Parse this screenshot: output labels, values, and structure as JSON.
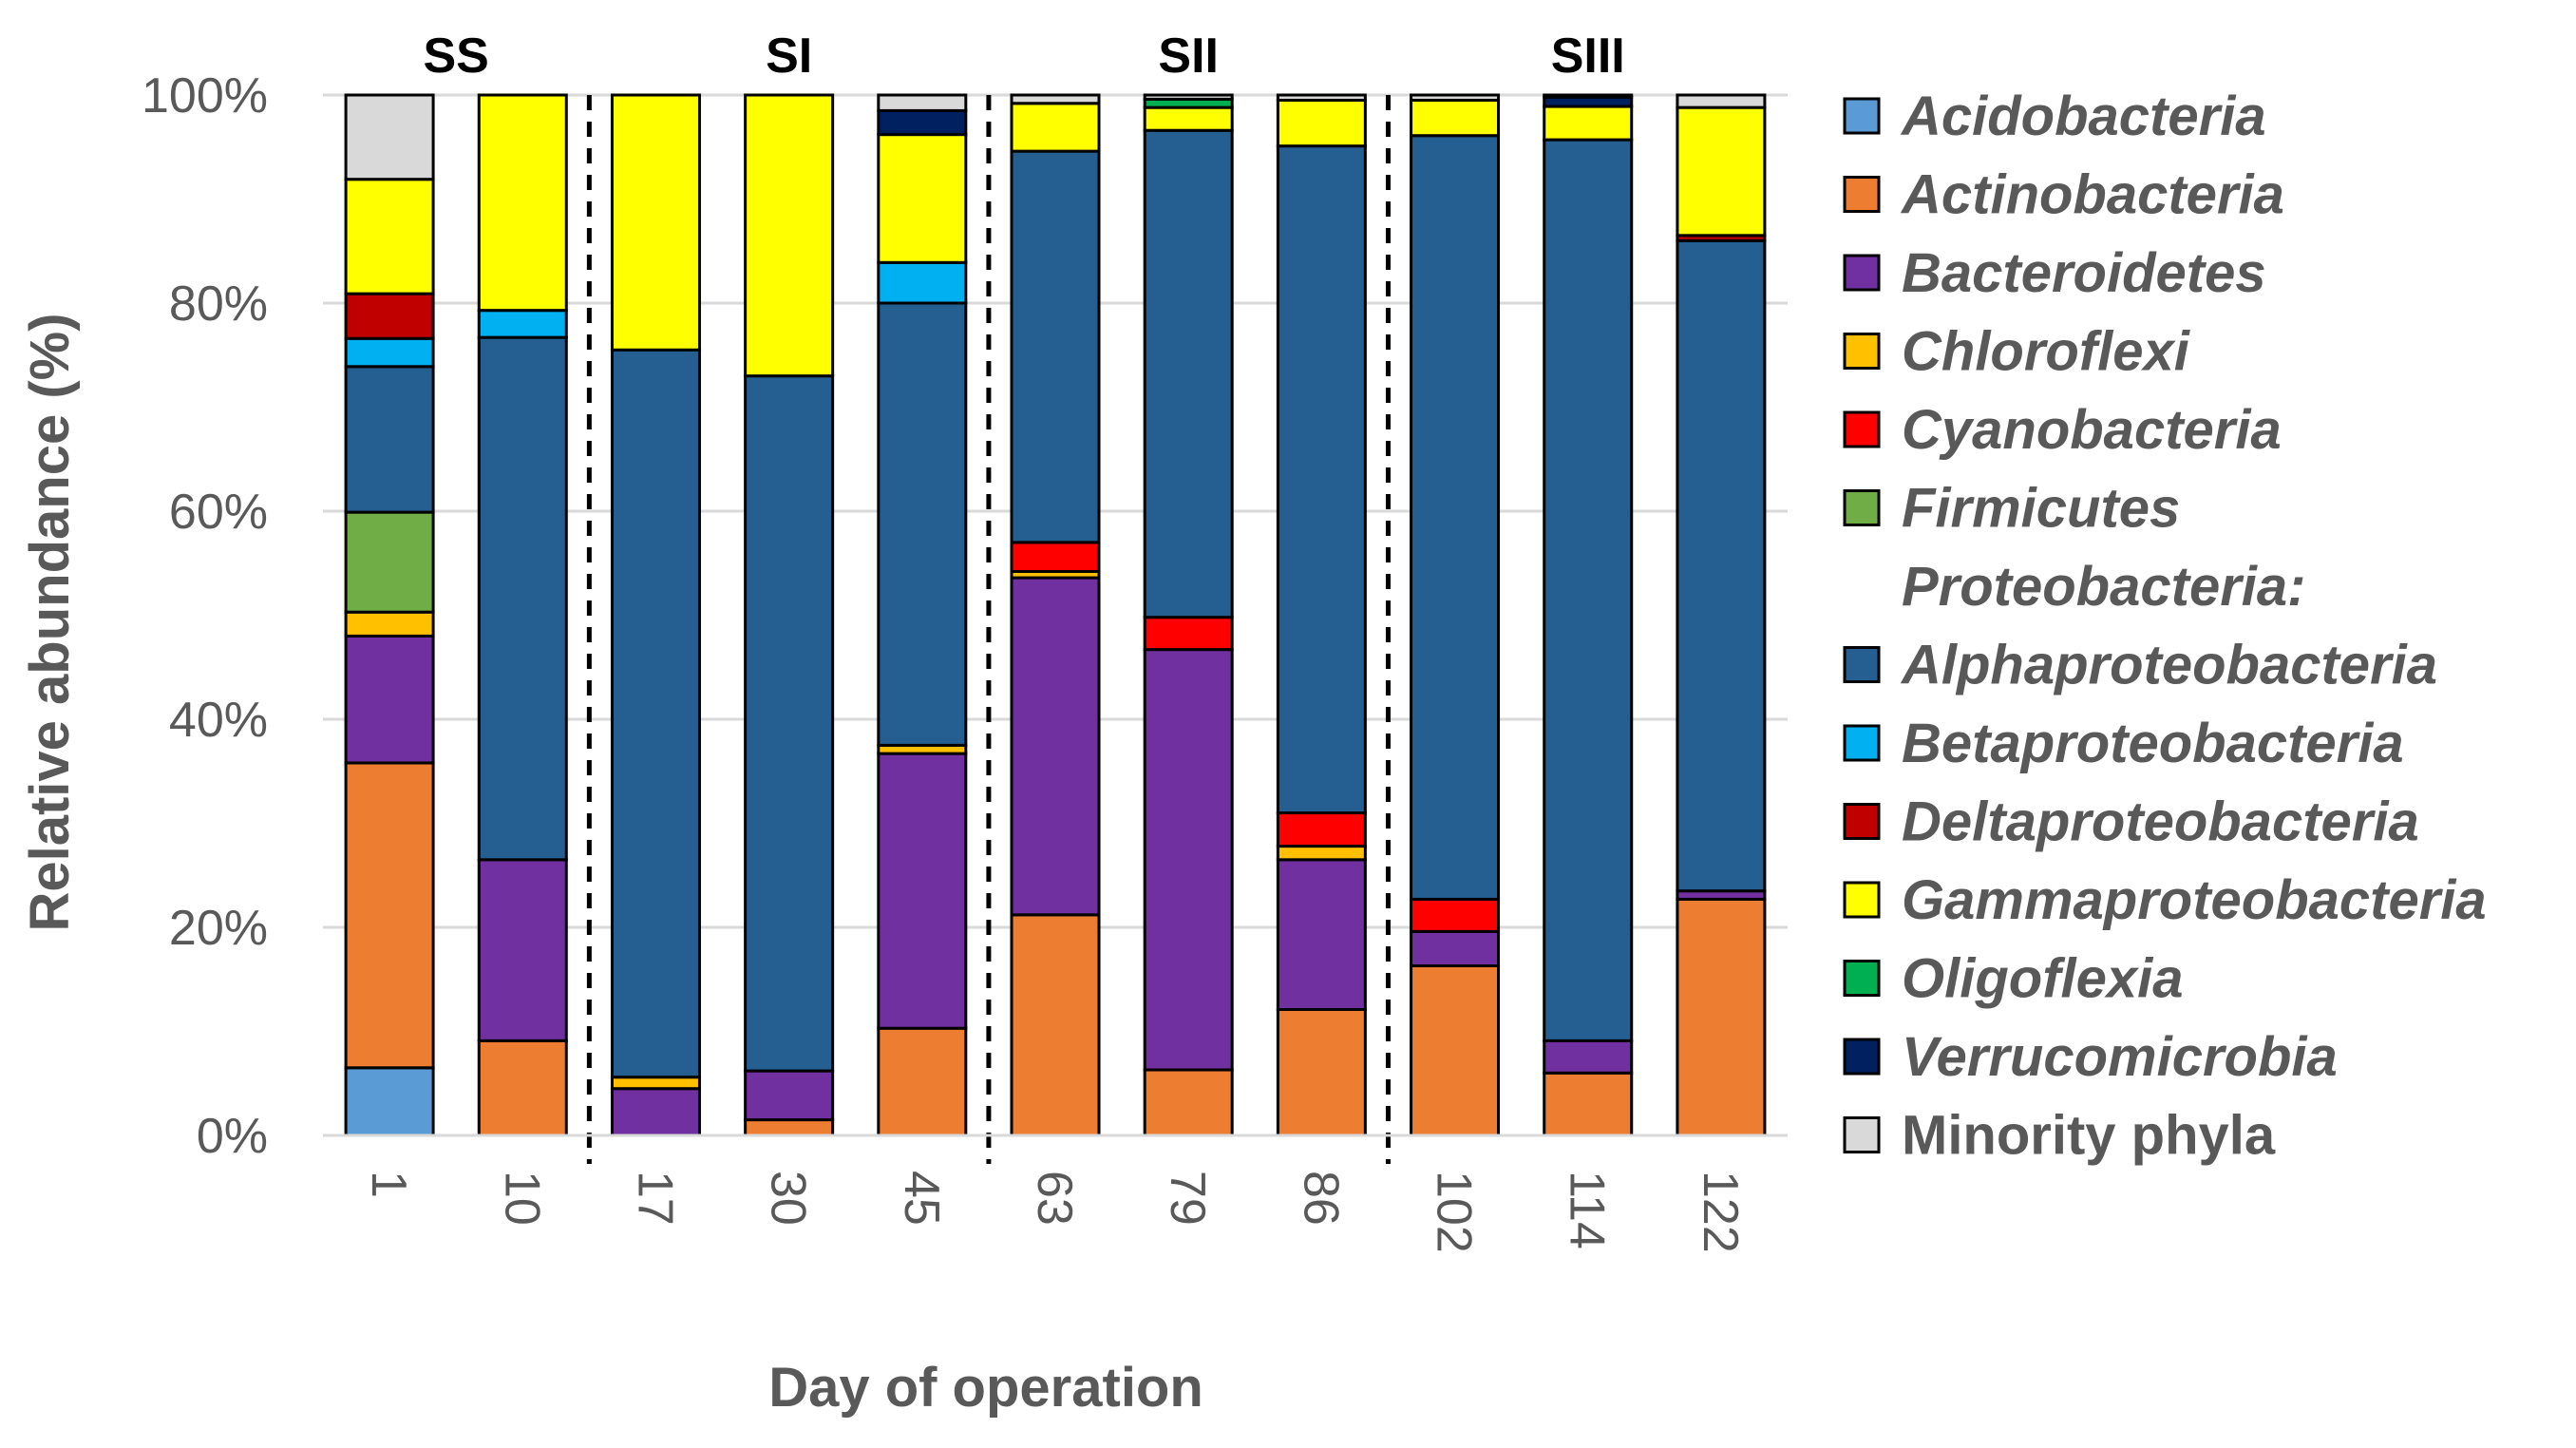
{
  "chart_data": {
    "type": "bar",
    "stacked": true,
    "title": "",
    "xlabel": "Day of operation",
    "ylabel": "Relative abundance (%)",
    "ylim": [
      0,
      100
    ],
    "y_ticks": [
      "0%",
      "20%",
      "40%",
      "60%",
      "80%",
      "100%"
    ],
    "y_tick_values": [
      0,
      20,
      40,
      60,
      80,
      100
    ],
    "categories": [
      "1",
      "10",
      "17",
      "30",
      "45",
      "63",
      "79",
      "86",
      "102",
      "114",
      "122"
    ],
    "grid": "horizontal",
    "legend_position": "right",
    "stages": [
      {
        "label": "SS",
        "first": 0,
        "last": 1
      },
      {
        "label": "SI",
        "first": 2,
        "last": 4
      },
      {
        "label": "SII",
        "first": 5,
        "last": 7
      },
      {
        "label": "SIII",
        "first": 8,
        "last": 10
      }
    ],
    "stage_dividers_after": [
      1,
      4,
      7
    ],
    "legend_group_header": {
      "text": "Proteobacteria:",
      "before_series": 6
    },
    "series": [
      {
        "name": "Acidobacteria",
        "color": "#5B9BD5",
        "italic": true,
        "values": [
          6.5,
          0,
          0,
          0,
          0,
          0,
          0,
          0,
          0,
          0,
          0
        ]
      },
      {
        "name": "Actinobacteria",
        "color": "#ED7D31",
        "italic": true,
        "values": [
          29.3,
          9.1,
          0,
          1.5,
          10.3,
          21.2,
          6.3,
          12.1,
          16.3,
          6.0,
          22.7
        ]
      },
      {
        "name": "Bacteroidetes",
        "color": "#7030A0",
        "italic": true,
        "values": [
          12.2,
          17.4,
          4.5,
          4.7,
          26.4,
          32.4,
          40.4,
          14.4,
          3.3,
          3.1,
          0.8
        ]
      },
      {
        "name": "Chloroflexi",
        "color": "#FFC000",
        "italic": true,
        "values": [
          2.3,
          0,
          1.1,
          0,
          0.8,
          0.6,
          0,
          1.3,
          0,
          0,
          0
        ]
      },
      {
        "name": "Cyanobacteria",
        "color": "#FF0000",
        "italic": true,
        "values": [
          0,
          0,
          0,
          0,
          0,
          2.8,
          3.1,
          3.2,
          3.1,
          0,
          0
        ]
      },
      {
        "name": "Firmicutes",
        "color": "#70AD47",
        "italic": true,
        "values": [
          9.6,
          0,
          0,
          0,
          0,
          0,
          0,
          0,
          0,
          0,
          0
        ]
      },
      {
        "name": "Alphaproteobacteria",
        "color": "#255E91",
        "italic": true,
        "values": [
          14.0,
          50.2,
          69.9,
          66.8,
          42.5,
          37.6,
          46.8,
          64.1,
          73.4,
          86.6,
          62.5
        ]
      },
      {
        "name": "Betaproteobacteria",
        "color": "#00B0F0",
        "italic": true,
        "values": [
          2.7,
          2.6,
          0,
          0,
          3.9,
          0,
          0,
          0,
          0,
          0,
          0
        ]
      },
      {
        "name": "Deltaproteobacteria",
        "color": "#C00000",
        "italic": true,
        "values": [
          4.3,
          0,
          0,
          0,
          0,
          0,
          0,
          0,
          0,
          0,
          0.5
        ]
      },
      {
        "name": "Gammaproteobacteria",
        "color": "#FFFF00",
        "italic": true,
        "values": [
          11.0,
          20.7,
          24.5,
          27.0,
          12.3,
          4.6,
          2.2,
          4.4,
          3.4,
          3.2,
          12.3
        ]
      },
      {
        "name": "Oligoflexia",
        "color": "#00B050",
        "italic": true,
        "values": [
          0,
          0,
          0,
          0,
          0,
          0,
          0.8,
          0,
          0,
          0,
          0
        ]
      },
      {
        "name": "Verrucomicrobia",
        "color": "#002060",
        "italic": true,
        "values": [
          0,
          0,
          0,
          0,
          2.3,
          0,
          0,
          0,
          0,
          0.9,
          0
        ]
      },
      {
        "name": "Minority phyla",
        "color": "#D9D9D9",
        "italic": false,
        "values": [
          8.1,
          0,
          0,
          0,
          1.5,
          0.8,
          0.4,
          0.5,
          0.5,
          0.2,
          1.2
        ]
      }
    ]
  }
}
